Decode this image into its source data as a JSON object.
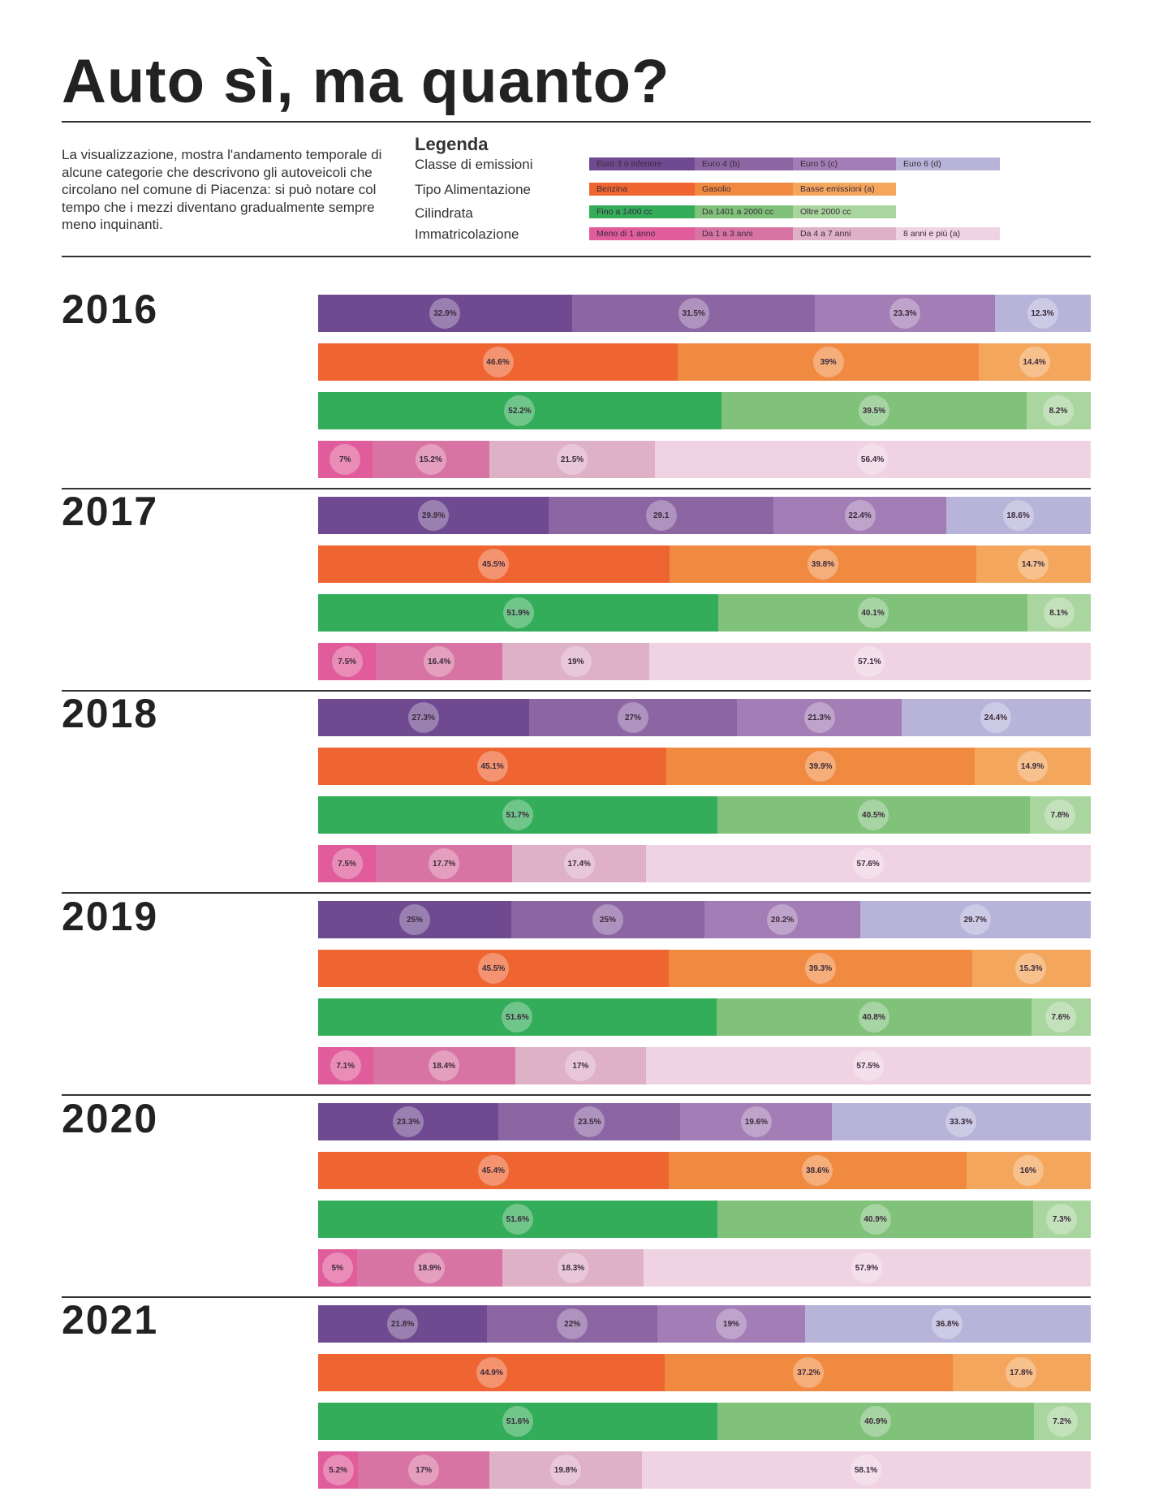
{
  "title": "Auto sì, ma quanto?",
  "description": "La visualizzazione, mostra l'andamento temporale di alcune categorie che descrivono gli autoveicoli che circolano nel comune di Piacenza: si può notare col tempo che i mezzi diventano gradualmente sempre meno inquinanti.",
  "legend": {
    "title": "Legenda",
    "groups": [
      {
        "label": "Classe di emissioni",
        "items": [
          "Euro 3 o inferiore",
          "Euro 4 (b)",
          "Euro 5 (c)",
          "Euro 6 (d)"
        ],
        "colors": [
          "#6f4a90",
          "#8c65a3",
          "#a37db5",
          "#b7b3d9"
        ]
      },
      {
        "label": "Tipo Alimentazione",
        "items": [
          "Benzina",
          "Gasolio",
          "Basse emissioni (a)"
        ],
        "colors": [
          "#ee6532",
          "#f18a41",
          "#f4a65c"
        ]
      },
      {
        "label": "Cilindrata",
        "items": [
          "Fino a 1400 cc",
          "Da 1401 a 2000 cc",
          "Oltre 2000 cc"
        ],
        "colors": [
          "#33ad5a",
          "#80c27a",
          "#a9d59e"
        ]
      },
      {
        "label": "Immatricolazione",
        "items": [
          "Meno di 1 anno",
          "Da 1 a 3 anni",
          "Da 4 a 7 anni",
          "8 anni e più (a)"
        ],
        "colors": [
          "#e05c9a",
          "#d874a3",
          "#dfb1c7",
          "#f0d3e2"
        ]
      }
    ]
  },
  "chart_data": {
    "type": "bar",
    "orientation": "horizontal-stacked-100",
    "title": "Auto sì, ma quanto?",
    "years": [
      "2016",
      "2017",
      "2018",
      "2019",
      "2020",
      "2021"
    ],
    "series": [
      {
        "name": "Classe di emissioni",
        "categories": [
          "Euro 3 o inferiore",
          "Euro 4 (b)",
          "Euro 5 (c)",
          "Euro 6 (d)"
        ],
        "values": [
          [
            32.9,
            31.5,
            23.3,
            12.3
          ],
          [
            29.9,
            29.1,
            22.4,
            18.6
          ],
          [
            27.3,
            27,
            21.3,
            24.4
          ],
          [
            25,
            25,
            20.2,
            29.7
          ],
          [
            23.3,
            23.5,
            19.6,
            33.3
          ],
          [
            21.8,
            22,
            19,
            36.8
          ]
        ],
        "labels": [
          [
            "32.9%",
            "31.5%",
            "23.3%",
            "12.3%"
          ],
          [
            "29.9%",
            "29.1",
            "22.4%",
            "18.6%"
          ],
          [
            "27.3%",
            "27%",
            "21.3%",
            "24.4%"
          ],
          [
            "25%",
            "25%",
            "20.2%",
            "29.7%"
          ],
          [
            "23.3%",
            "23.5%",
            "19.6%",
            "33.3%"
          ],
          [
            "21.8%",
            "22%",
            "19%",
            "36.8%"
          ]
        ]
      },
      {
        "name": "Tipo Alimentazione",
        "categories": [
          "Benzina",
          "Gasolio",
          "Basse emissioni (a)"
        ],
        "values": [
          [
            46.6,
            39,
            14.4
          ],
          [
            45.5,
            39.8,
            14.7
          ],
          [
            45.1,
            39.9,
            14.9
          ],
          [
            45.5,
            39.3,
            15.3
          ],
          [
            45.4,
            38.6,
            16
          ],
          [
            44.9,
            37.2,
            17.8
          ]
        ],
        "labels": [
          [
            "46.6%",
            "39%",
            "14.4%"
          ],
          [
            "45.5%",
            "39.8%",
            "14.7%"
          ],
          [
            "45.1%",
            "39.9%",
            "14.9%"
          ],
          [
            "45.5%",
            "39.3%",
            "15.3%"
          ],
          [
            "45.4%",
            "38.6%",
            "16%"
          ],
          [
            "44.9%",
            "37.2%",
            "17.8%"
          ]
        ]
      },
      {
        "name": "Cilindrata",
        "categories": [
          "Fino a 1400 cc",
          "Da 1401 a 2000 cc",
          "Oltre 2000 cc"
        ],
        "values": [
          [
            52.2,
            39.5,
            8.2
          ],
          [
            51.9,
            40.1,
            8.1
          ],
          [
            51.7,
            40.5,
            7.8
          ],
          [
            51.6,
            40.8,
            7.6
          ],
          [
            51.6,
            40.9,
            7.3
          ],
          [
            51.6,
            40.9,
            7.2
          ]
        ],
        "labels": [
          [
            "52.2%",
            "39.5%",
            "8.2%"
          ],
          [
            "51.9%",
            "40.1%",
            "8.1%"
          ],
          [
            "51.7%",
            "40.5%",
            "7.8%"
          ],
          [
            "51.6%",
            "40.8%",
            "7.6%"
          ],
          [
            "51.6%",
            "40.9%",
            "7.3%"
          ],
          [
            "51.6%",
            "40.9%",
            "7.2%"
          ]
        ]
      },
      {
        "name": "Immatricolazione",
        "categories": [
          "Meno di 1 anno",
          "Da 1 a 3 anni",
          "Da 4 a 7 anni",
          "8 anni e più (a)"
        ],
        "values": [
          [
            7,
            15.2,
            21.5,
            56.4
          ],
          [
            7.5,
            16.4,
            19,
            57.1
          ],
          [
            7.5,
            17.7,
            17.4,
            57.6
          ],
          [
            7.1,
            18.4,
            17,
            57.5
          ],
          [
            5,
            18.9,
            18.3,
            57.9
          ],
          [
            5.2,
            17,
            19.8,
            58.1
          ]
        ],
        "labels": [
          [
            "7%",
            "15.2%",
            "21.5%",
            "56.4%"
          ],
          [
            "7.5%",
            "16.4%",
            "19%",
            "57.1%"
          ],
          [
            "7.5%",
            "17.7%",
            "17.4%",
            "57.6%"
          ],
          [
            "7.1%",
            "18.4%",
            "17%",
            "57.5%"
          ],
          [
            "5%",
            "18.9%",
            "18.3%",
            "57.9%"
          ],
          [
            "5.2%",
            "17%",
            "19.8%",
            "58.1%"
          ]
        ]
      }
    ]
  }
}
